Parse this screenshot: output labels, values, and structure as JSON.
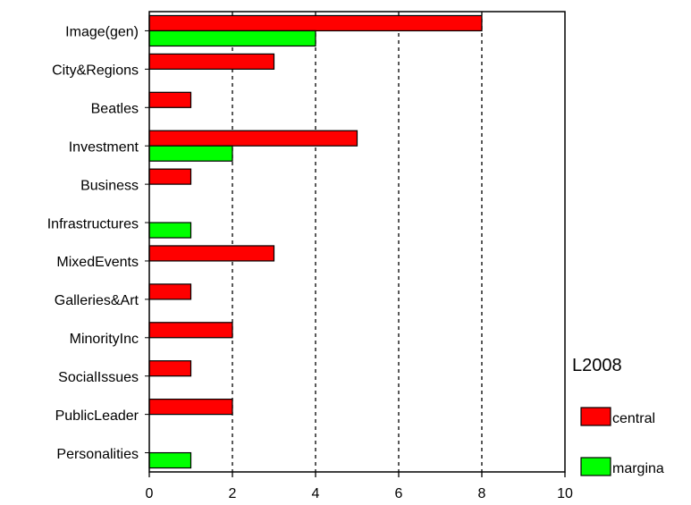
{
  "chart_data": {
    "type": "bar",
    "orientation": "horizontal",
    "categories": [
      "Image(gen)",
      "City&Regions",
      "Beatles",
      "Investment",
      "Business",
      "Infrastructures",
      "MixedEvents",
      "Galleries&Art",
      "MinorityInc",
      "SocialIssues",
      "PublicLeader",
      "Personalities"
    ],
    "series": [
      {
        "name": "central",
        "color": "#ff0000",
        "values": [
          8,
          3,
          1,
          5,
          1,
          0,
          3,
          1,
          2,
          1,
          2,
          0
        ]
      },
      {
        "name": "margina",
        "color": "#00ff00",
        "values": [
          4,
          0,
          0,
          2,
          0,
          1,
          0,
          0,
          0,
          0,
          0,
          1
        ]
      }
    ],
    "xlim": [
      0,
      10
    ],
    "xticks": [
      "0",
      "2",
      "4",
      "6",
      "8",
      "10"
    ],
    "grid": "vertical dashed",
    "legend": {
      "title": "L2008",
      "placement": "right"
    }
  }
}
